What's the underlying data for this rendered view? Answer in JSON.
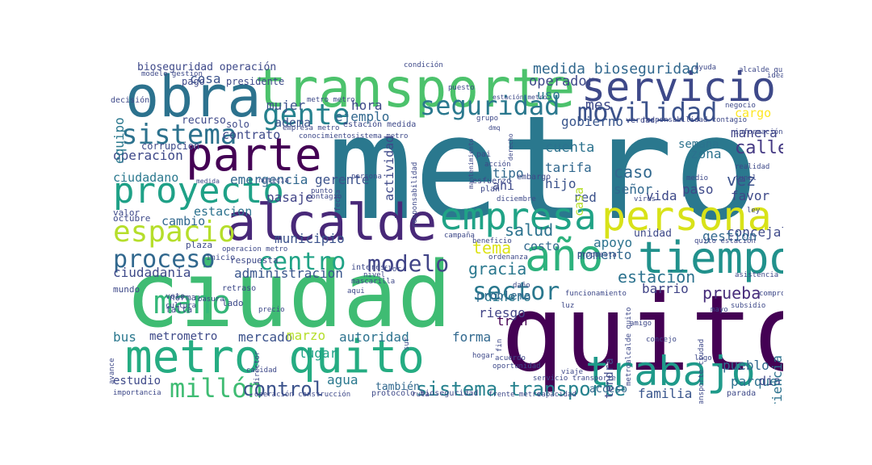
{
  "words": [
    {
      "text": "metro",
      "color": "#2a788e"
    },
    {
      "text": "quito",
      "color": "#440154"
    },
    {
      "text": "ciudad",
      "color": "#3fbc73"
    },
    {
      "text": "transporte",
      "color": "#4cc26c"
    },
    {
      "text": "obra",
      "color": "#2c728e"
    },
    {
      "text": "servicio",
      "color": "#3e4989"
    },
    {
      "text": "alcalde",
      "color": "#482878"
    },
    {
      "text": "persona",
      "color": "#d8e219"
    },
    {
      "text": "empresa",
      "color": "#20a386"
    },
    {
      "text": "año",
      "color": "#2db27d"
    },
    {
      "text": "tiempo",
      "color": "#21918c"
    },
    {
      "text": "metro quito",
      "color": "#25ac82"
    },
    {
      "text": "trabajo",
      "color": "#1f9a8a"
    },
    {
      "text": "parte",
      "color": "#440154"
    },
    {
      "text": "proyecto",
      "color": "#1fa187"
    },
    {
      "text": "espacio",
      "color": "#b5de2b"
    },
    {
      "text": "gente",
      "color": "#26828e"
    },
    {
      "text": "seguridad",
      "color": "#2a788e"
    },
    {
      "text": "movilidad",
      "color": "#3b528b"
    },
    {
      "text": "sistema",
      "color": "#2c728e"
    },
    {
      "text": "mano",
      "color": "#35b779"
    },
    {
      "text": "proceso",
      "color": "#31688e"
    },
    {
      "text": "centro",
      "color": "#20a386"
    },
    {
      "text": "modelo",
      "color": "#414487"
    },
    {
      "text": "sector",
      "color": "#2a788e"
    },
    {
      "text": "millón",
      "color": "#3fbc73"
    },
    {
      "text": "sistema transporte",
      "color": "#26828e"
    },
    {
      "text": "control",
      "color": "#3b528b"
    },
    {
      "text": "medida bioseguridad",
      "color": "#31688e"
    },
    {
      "text": "bioseguridad operación",
      "color": "#3e4989"
    },
    {
      "text": "cosa",
      "color": "#3b528b"
    },
    {
      "text": "operador",
      "color": "#3e4989"
    },
    {
      "text": "mes",
      "color": "#3e4989"
    },
    {
      "text": "calle",
      "color": "#443983"
    },
    {
      "text": "caso",
      "color": "#31688e"
    },
    {
      "text": "vez",
      "color": "#3b528b"
    },
    {
      "text": "salud",
      "color": "#2c728e"
    },
    {
      "text": "tema",
      "color": "#dde318"
    },
    {
      "text": "gracia",
      "color": "#2a788e"
    },
    {
      "text": "estación",
      "color": "#2c728e"
    },
    {
      "text": "prueba",
      "color": "#472d7b"
    },
    {
      "text": "concejal",
      "color": "#3e4989"
    },
    {
      "text": "ciudadano",
      "color": "#2a788e"
    },
    {
      "text": "municipio",
      "color": "#3b528b"
    },
    {
      "text": "ciudadania",
      "color": "#3e4989"
    },
    {
      "text": "administracion",
      "color": "#39558c"
    },
    {
      "text": "operacion",
      "color": "#3e4989"
    },
    {
      "text": "emergencia",
      "color": "#31688e"
    },
    {
      "text": "estacion",
      "color": "#2c728e"
    },
    {
      "text": "cambio",
      "color": "#31688e"
    },
    {
      "text": "mercado",
      "color": "#3b528b"
    },
    {
      "text": "marzo",
      "color": "#b5de2b"
    },
    {
      "text": "lugar",
      "color": "#1fa187"
    },
    {
      "text": "agua",
      "color": "#2a788e"
    },
    {
      "text": "forma",
      "color": "#31688e"
    },
    {
      "text": "autoridad",
      "color": "#2c728e"
    },
    {
      "text": "tren",
      "color": "#440154"
    },
    {
      "text": "riesgo",
      "color": "#414487"
    },
    {
      "text": "dinero",
      "color": "#2a788e"
    },
    {
      "text": "problema",
      "color": "#31688e"
    },
    {
      "text": "pueblo",
      "color": "#31688e"
    },
    {
      "text": "parque",
      "color": "#2c728e"
    },
    {
      "text": "familia",
      "color": "#39558c"
    },
    {
      "text": "gestion",
      "color": "#31688e"
    },
    {
      "text": "apoyo",
      "color": "#2c728e"
    },
    {
      "text": "favor",
      "color": "#3e4989"
    },
    {
      "text": "cuenta",
      "color": "#2c728e"
    },
    {
      "text": "tarifa",
      "color": "#31688e"
    },
    {
      "text": "hijo",
      "color": "#3b528b"
    },
    {
      "text": "tipo",
      "color": "#31688e"
    },
    {
      "text": "ahi",
      "color": "#3e4989"
    },
    {
      "text": "paso",
      "color": "#3e4989"
    },
    {
      "text": "zona",
      "color": "#2c728e"
    },
    {
      "text": "semana",
      "color": "#2c728e"
    },
    {
      "text": "gobierno",
      "color": "#39558c"
    },
    {
      "text": "mujer",
      "color": "#3b528b"
    },
    {
      "text": "hora",
      "color": "#3e4989"
    },
    {
      "text": "ejemplo",
      "color": "#31688e"
    },
    {
      "text": "uso",
      "color": "#2a788e"
    },
    {
      "text": "equipo",
      "color": "#2a788e"
    },
    {
      "text": "pasaje",
      "color": "#414487"
    },
    {
      "text": "gerente",
      "color": "#3b528b"
    },
    {
      "text": "costo",
      "color": "#31688e"
    },
    {
      "text": "momento",
      "color": "#31688e"
    },
    {
      "text": "vida",
      "color": "#3e4989"
    },
    {
      "text": "red",
      "color": "#3b528b"
    },
    {
      "text": "señor",
      "color": "#31688e"
    },
    {
      "text": "barrio",
      "color": "#414487"
    },
    {
      "text": "cargo",
      "color": "#fde725"
    },
    {
      "text": "manera",
      "color": "#414487"
    },
    {
      "text": "dia",
      "color": "#3e4989"
    },
    {
      "text": "bus",
      "color": "#2a788e"
    },
    {
      "text": "estudio",
      "color": "#3e4989"
    },
    {
      "text": "también",
      "color": "#31688e"
    },
    {
      "text": "acceso",
      "color": "#31688e"
    },
    {
      "text": "adema",
      "color": "#3b528b"
    },
    {
      "text": "contrato",
      "color": "#3e4989"
    },
    {
      "text": "casa",
      "color": "#b5de2b"
    },
    {
      "text": "experiencia",
      "color": "#2c728e"
    },
    {
      "text": "tendra",
      "color": "#3e4989"
    },
    {
      "text": "unidad",
      "color": "#3e4989"
    },
    {
      "text": "metrometro",
      "color": "#3e4989"
    },
    {
      "text": "recurso",
      "color": "#3e4989"
    },
    {
      "text": "pago",
      "color": "#3e4989"
    },
    {
      "text": "presidente",
      "color": "#3e4989"
    },
    {
      "text": "solo",
      "color": "#3e4989"
    },
    {
      "text": "corrupcion",
      "color": "#3e4989"
    },
    {
      "text": "plaza",
      "color": "#3e4989"
    },
    {
      "text": "valor",
      "color": "#3e4989"
    },
    {
      "text": "octubre",
      "color": "#3e4989"
    },
    {
      "text": "mundo",
      "color": "#3e4989"
    },
    {
      "text": "norma",
      "color": "#3e4989"
    },
    {
      "text": "lado",
      "color": "#3e4989"
    },
    {
      "text": "voto",
      "color": "#3e4989"
    },
    {
      "text": "falta",
      "color": "#3e4989"
    },
    {
      "text": "inicio",
      "color": "#3e4989"
    },
    {
      "text": "respuesta",
      "color": "#3e4989"
    },
    {
      "text": "retraso",
      "color": "#3e4989"
    },
    {
      "text": "basura",
      "color": "#3e4989"
    },
    {
      "text": "precio",
      "color": "#3e4989"
    },
    {
      "text": "cultura",
      "color": "#3e4989"
    },
    {
      "text": "avance",
      "color": "#3e4989"
    },
    {
      "text": "importancia",
      "color": "#3e4989"
    },
    {
      "text": "fecha",
      "color": "#3e4989"
    },
    {
      "text": "noticia",
      "color": "#3e4989"
    },
    {
      "text": "punto",
      "color": "#3e4989"
    },
    {
      "text": "contagio",
      "color": "#3e4989"
    },
    {
      "text": "medida",
      "color": "#3e4989"
    },
    {
      "text": "persona",
      "color": "#3e4989"
    },
    {
      "text": "metro metro",
      "color": "#3e4989"
    },
    {
      "text": "conocimiento",
      "color": "#3e4989"
    },
    {
      "text": "sistema metro",
      "color": "#3e4989"
    },
    {
      "text": "empresa metro",
      "color": "#3e4989"
    },
    {
      "text": "estación medida",
      "color": "#3e4989"
    },
    {
      "text": "decisión",
      "color": "#3e4989"
    },
    {
      "text": "modelo gestion",
      "color": "#3e4989"
    },
    {
      "text": "condición",
      "color": "#3e4989"
    },
    {
      "text": "puesto",
      "color": "#3e4989"
    },
    {
      "text": "estación metro",
      "color": "#3e4989"
    },
    {
      "text": "grupo",
      "color": "#3e4989"
    },
    {
      "text": "dmq",
      "color": "#3e4989"
    },
    {
      "text": "pai",
      "color": "#3e4989"
    },
    {
      "text": "acción",
      "color": "#3e4989"
    },
    {
      "text": "esfuerzo",
      "color": "#3e4989"
    },
    {
      "text": "mantenimiento",
      "color": "#3e4989"
    },
    {
      "text": "derecho",
      "color": "#3e4989"
    },
    {
      "text": "embargo",
      "color": "#3e4989"
    },
    {
      "text": "plan",
      "color": "#3e4989"
    },
    {
      "text": "diciembre",
      "color": "#3e4989"
    },
    {
      "text": "verdad",
      "color": "#3e4989"
    },
    {
      "text": "responsabilidad contagio",
      "color": "#3e4989"
    },
    {
      "text": "negocio",
      "color": "#3e4989"
    },
    {
      "text": "información",
      "color": "#3e4989"
    },
    {
      "text": "tunel",
      "color": "#3e4989"
    },
    {
      "text": "realidad",
      "color": "#3e4989"
    },
    {
      "text": "medio",
      "color": "#3e4989"
    },
    {
      "text": "virus",
      "color": "#3e4989"
    },
    {
      "text": "ley",
      "color": "#3e4989"
    },
    {
      "text": "idea",
      "color": "#3e4989"
    },
    {
      "text": "alcalde quito",
      "color": "#3e4989"
    },
    {
      "text": "ayuda",
      "color": "#3e4989"
    },
    {
      "text": "responsabilidad",
      "color": "#3e4989"
    },
    {
      "text": "actividad",
      "color": "#3e4989"
    },
    {
      "text": "campaña",
      "color": "#3e4989"
    },
    {
      "text": "beneficio",
      "color": "#3e4989"
    },
    {
      "text": "ordenanza",
      "color": "#3e4989"
    },
    {
      "text": "propuesta",
      "color": "#3e4989"
    },
    {
      "text": "quito estación",
      "color": "#3e4989"
    },
    {
      "text": "asistencia",
      "color": "#3e4989"
    },
    {
      "text": "compromiso",
      "color": "#3e4989"
    },
    {
      "text": "subsidio",
      "color": "#3e4989"
    },
    {
      "text": "mayo",
      "color": "#3e4989"
    },
    {
      "text": "amigo",
      "color": "#3e4989"
    },
    {
      "text": "concejo",
      "color": "#3e4989"
    },
    {
      "text": "logo",
      "color": "#3e4989"
    },
    {
      "text": "transporte ciudad",
      "color": "#3e4989"
    },
    {
      "text": "operacion metro",
      "color": "#3e4989"
    },
    {
      "text": "interés",
      "color": "#3e4989"
    },
    {
      "text": "flor",
      "color": "#3e4989"
    },
    {
      "text": "nivel",
      "color": "#3e4989"
    },
    {
      "text": "mascarilla",
      "color": "#3e4989"
    },
    {
      "text": "aqui",
      "color": "#3e4989"
    },
    {
      "text": "daño",
      "color": "#3e4989"
    },
    {
      "text": "funcionamiento",
      "color": "#3e4989"
    },
    {
      "text": "metroalcalde quito",
      "color": "#3e4989"
    },
    {
      "text": "luz",
      "color": "#3e4989"
    },
    {
      "text": "servicio transporte",
      "color": "#3e4989"
    },
    {
      "text": "fin",
      "color": "#3e4989"
    },
    {
      "text": "viaje",
      "color": "#3e4989"
    },
    {
      "text": "acuerdo",
      "color": "#3e4989"
    },
    {
      "text": "hogar",
      "color": "#3e4989"
    },
    {
      "text": "sur",
      "color": "#3e4989"
    },
    {
      "text": "oportunidad",
      "color": "#3e4989"
    },
    {
      "text": "calidad",
      "color": "#3e4989"
    },
    {
      "text": "protocolo bioseguridad",
      "color": "#3e4989"
    },
    {
      "text": "operación construcción",
      "color": "#3e4989"
    },
    {
      "text": "ruta",
      "color": "#3e4989"
    },
    {
      "text": "frente metro",
      "color": "#3e4989"
    },
    {
      "text": "capacidad",
      "color": "#3e4989"
    },
    {
      "text": "parada",
      "color": "#3e4989"
    },
    {
      "text": "director",
      "color": "#3e4989"
    }
  ]
}
